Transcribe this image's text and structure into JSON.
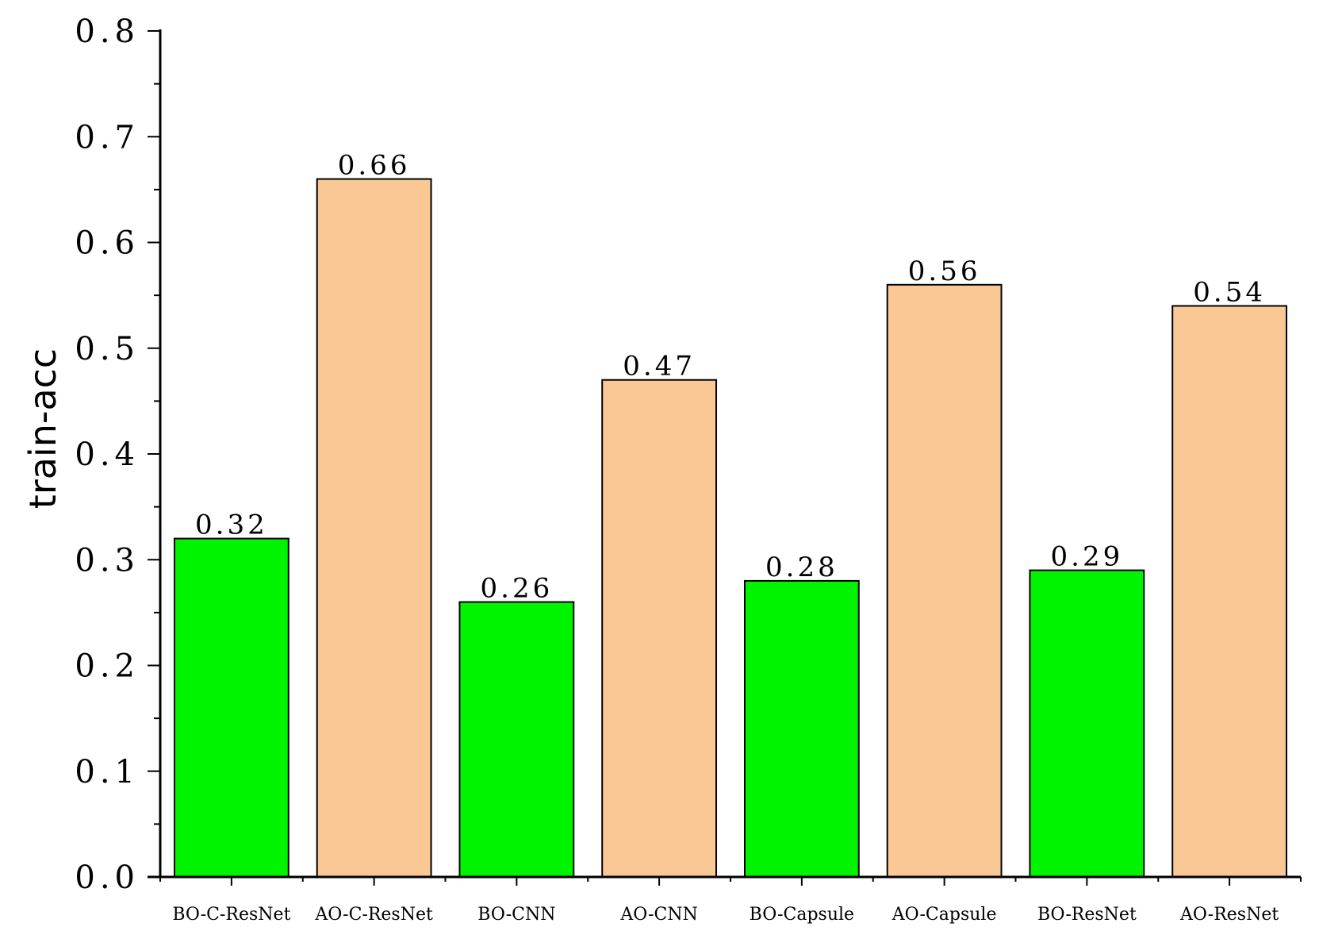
{
  "chart_data": {
    "type": "bar",
    "categories": [
      "BO-C-ResNet",
      "AO-C-ResNet",
      "BO-CNN",
      "AO-CNN",
      "BO-Capsule",
      "AO-Capsule",
      "BO-ResNet",
      "AO-ResNet"
    ],
    "values": [
      0.32,
      0.66,
      0.26,
      0.47,
      0.28,
      0.56,
      0.29,
      0.54
    ],
    "value_labels": [
      "0.32",
      "0.66",
      "0.26",
      "0.47",
      "0.28",
      "0.56",
      "0.29",
      "0.54"
    ],
    "bar_colors": [
      "#00f400",
      "#fac895",
      "#00f400",
      "#fac895",
      "#00f400",
      "#fac895",
      "#00f400",
      "#fac895"
    ],
    "title": "",
    "xlabel": "",
    "ylabel": "train-acc",
    "ylim": [
      0,
      0.8
    ],
    "yticks": [
      0.0,
      0.1,
      0.2,
      0.3,
      0.4,
      0.5,
      0.6,
      0.7,
      0.8
    ],
    "ytick_labels": [
      "0.0",
      "0.1",
      "0.2",
      "0.3",
      "0.4",
      "0.5",
      "0.6",
      "0.7",
      "0.8"
    ],
    "grid": false,
    "legend": "none"
  }
}
